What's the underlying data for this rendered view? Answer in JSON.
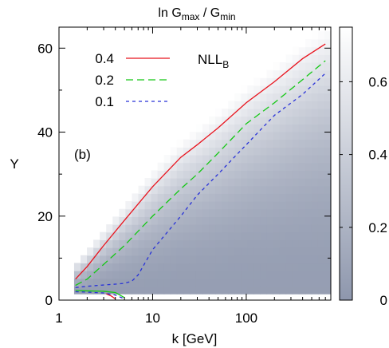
{
  "chart_data": {
    "type": "line",
    "title_main": "ln G",
    "title_sub1": "max",
    "title_mid": " / G",
    "title_sub2": "min",
    "xlabel": "k [GeV]",
    "ylabel": "Y",
    "x_scale": "log",
    "xlim": [
      1,
      800
    ],
    "ylim": [
      0,
      65
    ],
    "xticks": [
      1,
      10,
      100
    ],
    "xtick_labels": [
      "1",
      "10",
      "100"
    ],
    "yticks": [
      0,
      20,
      40,
      60
    ],
    "ytick_labels": [
      "0",
      "20",
      "40",
      "60"
    ],
    "legend_title": "NLL",
    "legend_title_sub": "B",
    "panel_label": "(b)",
    "colorbar": {
      "range": [
        0,
        0.75
      ],
      "ticks": [
        0,
        0.2,
        0.4,
        0.6
      ],
      "tick_labels": [
        "0",
        "0.2",
        "0.4",
        "0.6"
      ],
      "color_low": "#8e97ad",
      "color_high": "#ffffff"
    },
    "series": [
      {
        "name": "0.4",
        "color": "#e8141e",
        "dash": "solid",
        "x": [
          1.5,
          2,
          3,
          5,
          10,
          20,
          30,
          50,
          100,
          200,
          400,
          700
        ],
        "y": [
          5,
          8,
          13,
          19,
          27,
          34,
          37,
          41,
          47,
          52,
          57.5,
          61
        ]
      },
      {
        "name": "0.2",
        "color": "#14c814",
        "dash": "long",
        "x": [
          1.5,
          2,
          3,
          5,
          10,
          20,
          30,
          50,
          100,
          200,
          400,
          700
        ],
        "y": [
          3.5,
          5,
          8.5,
          13,
          20,
          26.5,
          30,
          35,
          42,
          47,
          52.5,
          57
        ]
      },
      {
        "name": "0.1",
        "color": "#2832d8",
        "dash": "short",
        "x": [
          1.5,
          2,
          3,
          4,
          5,
          6,
          7,
          10,
          20,
          30,
          50,
          100,
          200,
          400,
          700
        ],
        "y": [
          3,
          3.3,
          3.6,
          3.8,
          4,
          4.5,
          6,
          12,
          20,
          25,
          30,
          37,
          44,
          49,
          54
        ]
      }
    ],
    "low_branch_series": [
      {
        "color": "#14c814",
        "x": [
          1.5,
          2,
          3,
          4,
          5
        ],
        "y": [
          2.3,
          2.2,
          2.1,
          1.8,
          0.6
        ]
      },
      {
        "color": "#e8141e",
        "x": [
          3.2,
          3.6,
          4
        ],
        "y": [
          1.5,
          1.0,
          0.3
        ]
      },
      {
        "color": "#2832d8",
        "x": [
          1.5,
          2,
          3,
          4,
          5
        ],
        "y": [
          2.0,
          1.9,
          1.7,
          1.2,
          0.3
        ]
      }
    ]
  }
}
